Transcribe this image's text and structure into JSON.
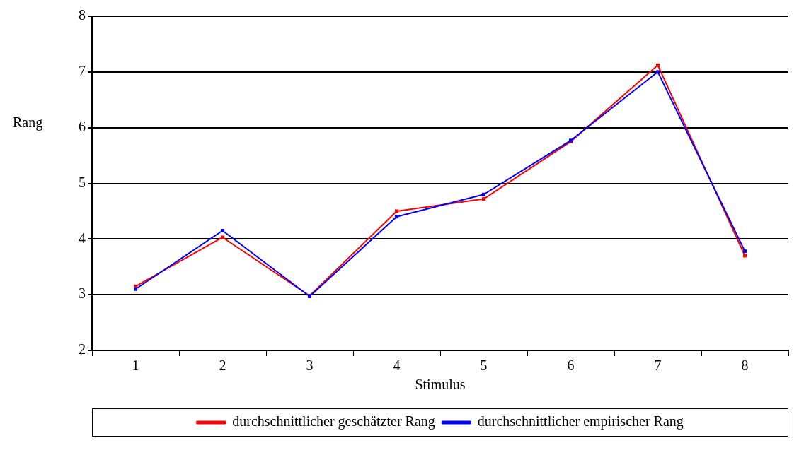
{
  "chart_data": {
    "type": "line",
    "xlabel": "Stimulus",
    "ylabel": "Rang",
    "categories": [
      "1",
      "2",
      "3",
      "4",
      "5",
      "6",
      "7",
      "8"
    ],
    "series": [
      {
        "name": "durchschnittlicher geschätzter Rang",
        "color": "#ff0000",
        "values": [
          3.15,
          4.03,
          2.98,
          4.5,
          4.72,
          5.75,
          7.12,
          3.7
        ]
      },
      {
        "name": "durchschnittlicher empirischer Rang",
        "color": "#0000ff",
        "values": [
          3.1,
          4.15,
          2.97,
          4.4,
          4.8,
          5.77,
          7.0,
          3.78
        ]
      }
    ],
    "ylim": [
      2,
      8
    ],
    "yticks": [
      2,
      3,
      4,
      5,
      6,
      7,
      8
    ],
    "grid": "y",
    "legend": "bottom",
    "marker": "square",
    "line_style": "solid"
  }
}
